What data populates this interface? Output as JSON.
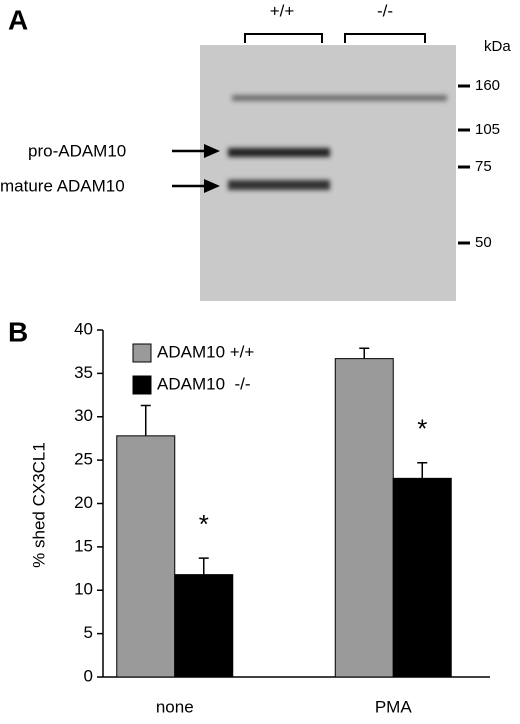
{
  "panel_a": {
    "label": "A",
    "lanes": [
      "+/+",
      "-/-"
    ],
    "unit": "kDa",
    "markers": [
      "160",
      "105",
      "75",
      "50"
    ],
    "bands": [
      "pro-ADAM10",
      "mature ADAM10"
    ]
  },
  "chart_data": {
    "type": "bar",
    "panel_label": "B",
    "ylabel": "% shed CX3CL1",
    "categories": [
      "none",
      "PMA"
    ],
    "series": [
      {
        "name": "ADAM10 +/+",
        "color": "#9a9a9a",
        "values": [
          27.8,
          36.7
        ],
        "errors": [
          3.5,
          1.2
        ]
      },
      {
        "name": "ADAM10  -/-",
        "color": "#000000",
        "values": [
          11.8,
          22.9
        ],
        "errors": [
          1.9,
          1.8
        ]
      }
    ],
    "annotations": [
      "*",
      "*"
    ],
    "ylim": [
      0,
      40
    ],
    "yticks": [
      0,
      5,
      10,
      15,
      20,
      25,
      30,
      35,
      40
    ],
    "grid": false
  }
}
